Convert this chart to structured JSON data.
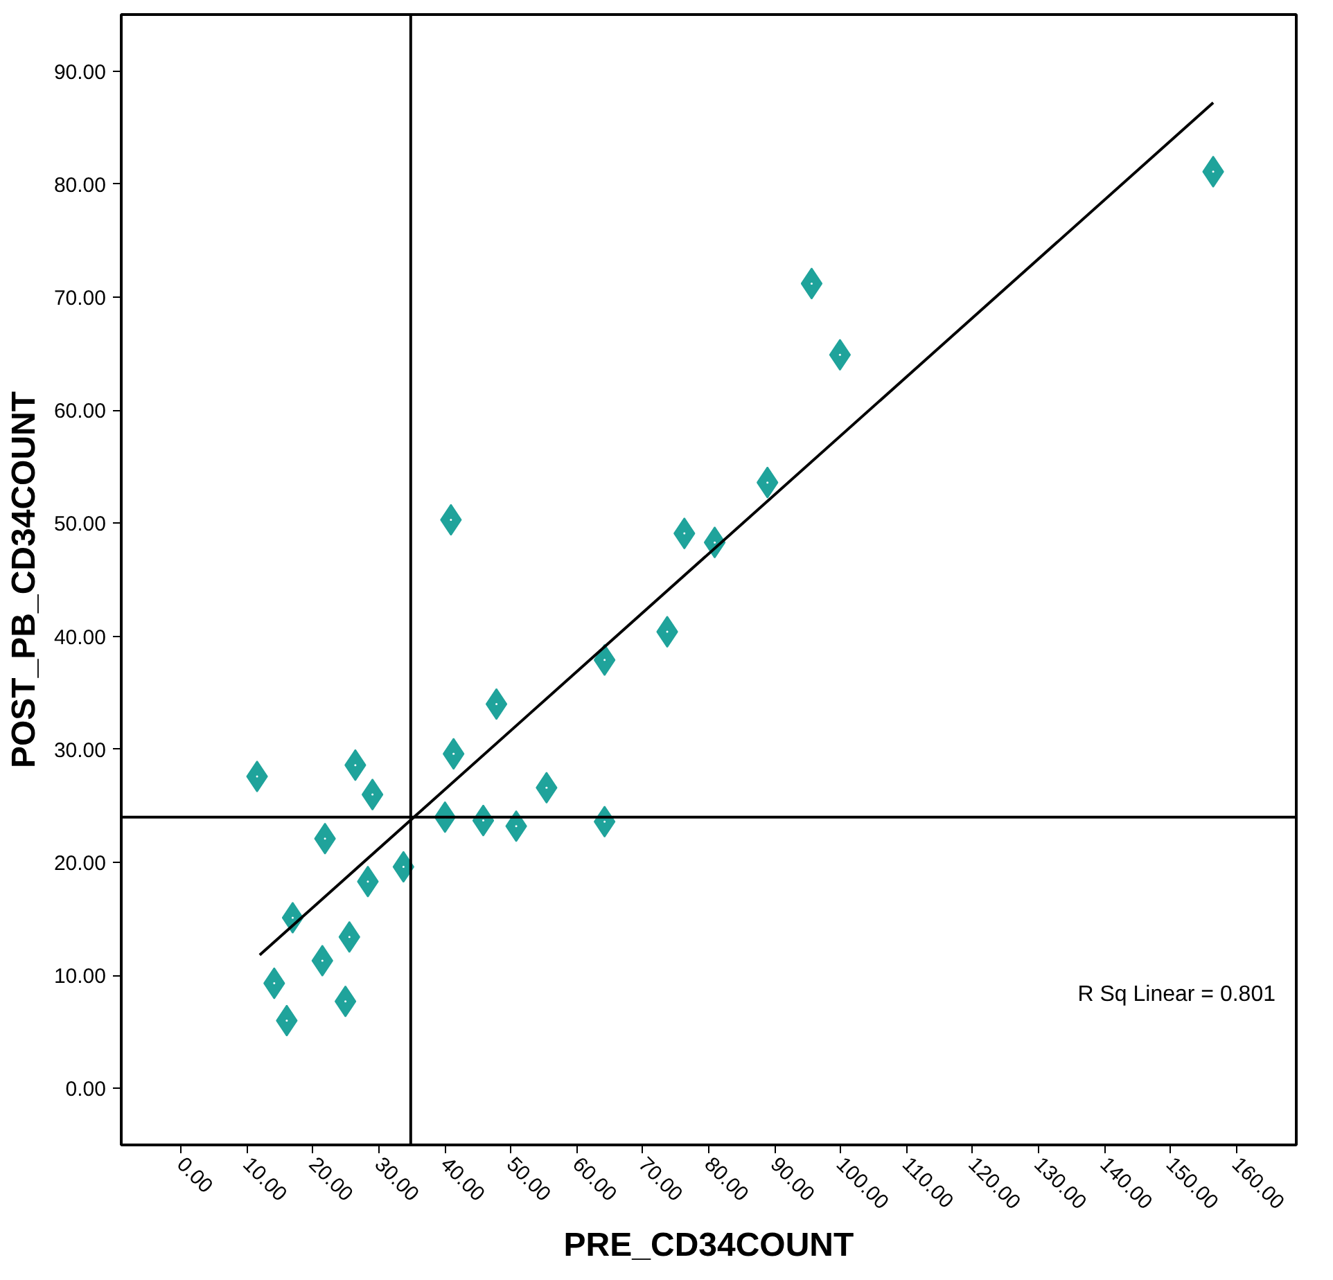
{
  "chart_data": {
    "type": "scatter",
    "xlabel": "PRE_CD34COUNT",
    "ylabel": "POST_PB_CD34COUNT",
    "xlim": [
      -9.1,
      169.1
    ],
    "ylim": [
      -5.0,
      95.0
    ],
    "xticks": [
      {
        "value": 0,
        "label": "0.00"
      },
      {
        "value": 10,
        "label": "10.00"
      },
      {
        "value": 20,
        "label": "20.00"
      },
      {
        "value": 30,
        "label": "30.00"
      },
      {
        "value": 40,
        "label": "40.00"
      },
      {
        "value": 50,
        "label": "50.00"
      },
      {
        "value": 60,
        "label": "60.00"
      },
      {
        "value": 70,
        "label": "70.00"
      },
      {
        "value": 80,
        "label": "80.00"
      },
      {
        "value": 90,
        "label": "90.00"
      },
      {
        "value": 100,
        "label": "100.00"
      },
      {
        "value": 110,
        "label": "110.00"
      },
      {
        "value": 120,
        "label": "120.00"
      },
      {
        "value": 130,
        "label": "130.00"
      },
      {
        "value": 140,
        "label": "140.00"
      },
      {
        "value": 150,
        "label": "150.00"
      },
      {
        "value": 160,
        "label": "160.00"
      }
    ],
    "yticks": [
      {
        "value": 0,
        "label": "0.00"
      },
      {
        "value": 10,
        "label": "10.00"
      },
      {
        "value": 20,
        "label": "20.00"
      },
      {
        "value": 30,
        "label": "30.00"
      },
      {
        "value": 40,
        "label": "40.00"
      },
      {
        "value": 50,
        "label": "50.00"
      },
      {
        "value": 60,
        "label": "60.00"
      },
      {
        "value": 70,
        "label": "70.00"
      },
      {
        "value": 80,
        "label": "80.00"
      },
      {
        "value": 90,
        "label": "90.00"
      }
    ],
    "grid": false,
    "marker": "diamond",
    "series": [
      {
        "color": "#1fa39b",
        "x": [
          11.5,
          14.1,
          16.0,
          16.9,
          21.4,
          21.8,
          24.9,
          25.5,
          26.4,
          28.3,
          29.0,
          33.7,
          40.0,
          40.9,
          41.3,
          45.8,
          47.8,
          50.8,
          55.4,
          64.2,
          64.2,
          73.7,
          76.3,
          80.9,
          88.9,
          95.6,
          99.9,
          156.5
        ],
        "values": [
          27.6,
          9.3,
          6.0,
          15.1,
          11.3,
          22.1,
          7.7,
          13.4,
          28.6,
          18.3,
          26.0,
          19.6,
          24.0,
          50.3,
          29.6,
          23.7,
          34.0,
          23.2,
          26.6,
          37.9,
          23.6,
          40.4,
          49.1,
          48.3,
          53.6,
          71.2,
          64.9,
          81.1
        ]
      },
      {
        "type": "line",
        "marker": "none",
        "color": "#000000",
        "line_style": "solid",
        "x": [
          11.9,
          156.5
        ],
        "values": [
          11.8,
          87.2
        ]
      }
    ],
    "ref_lines": [
      {
        "axis": "x",
        "value": 34.8,
        "color": "#000000"
      },
      {
        "axis": "y",
        "value": 24.0,
        "color": "#000000"
      }
    ],
    "annotations": [
      "R Sq Linear = 0.801"
    ]
  }
}
